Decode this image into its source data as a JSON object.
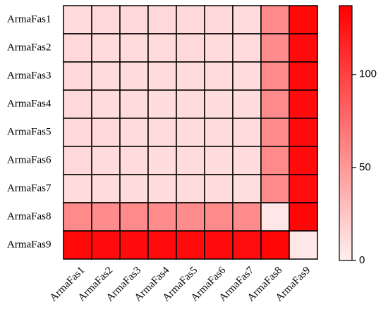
{
  "chart_data": {
    "type": "heatmap",
    "categories": [
      "ArmaFas1",
      "ArmaFas2",
      "ArmaFas3",
      "ArmaFas4",
      "ArmaFas5",
      "ArmaFas6",
      "ArmaFas7",
      "ArmaFas8",
      "ArmaFas9"
    ],
    "values": [
      [
        12,
        13,
        13,
        13,
        13,
        13,
        12,
        58,
        132
      ],
      [
        13,
        12,
        12,
        12,
        13,
        12,
        12,
        57,
        131
      ],
      [
        13,
        12,
        11,
        12,
        12,
        12,
        11,
        58,
        131
      ],
      [
        13,
        12,
        12,
        11,
        12,
        11,
        11,
        57,
        131
      ],
      [
        13,
        13,
        12,
        12,
        11,
        12,
        12,
        57,
        131
      ],
      [
        13,
        12,
        12,
        11,
        12,
        11,
        11,
        58,
        131
      ],
      [
        12,
        12,
        11,
        11,
        12,
        11,
        10,
        57,
        130
      ],
      [
        58,
        57,
        58,
        57,
        57,
        58,
        57,
        5,
        133
      ],
      [
        132,
        131,
        131,
        131,
        131,
        131,
        130,
        133,
        5
      ]
    ],
    "colormap": [
      "#fff0f0",
      "#ff0000"
    ],
    "colorbar": {
      "ylim": [
        0,
        137
      ],
      "yticks": [
        0,
        50,
        100
      ]
    }
  }
}
